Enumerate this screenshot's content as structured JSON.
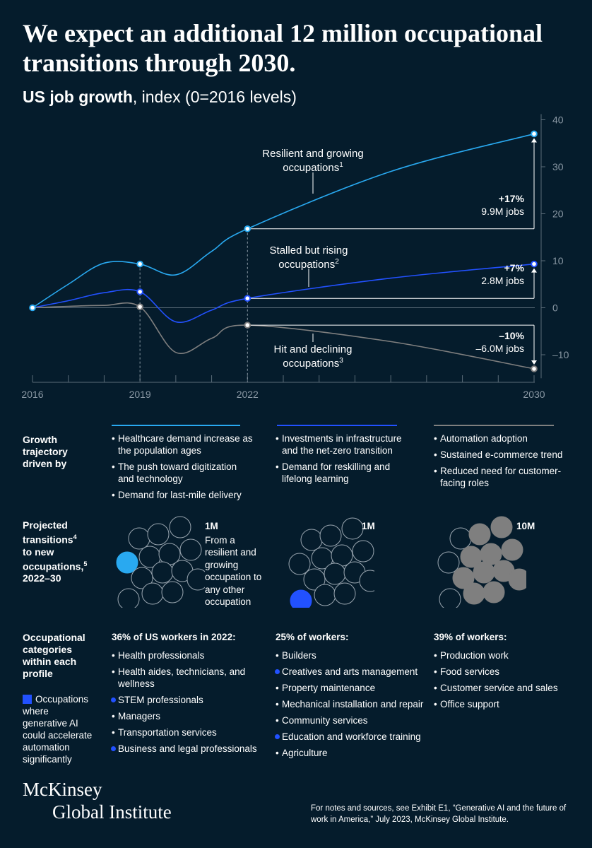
{
  "headline": "We expect an additional 12 million occupational transitions through 2030.",
  "subtitle_bold": "US job growth",
  "subtitle_rest": ", index (0=2016 levels)",
  "colors": {
    "background": "#051c2c",
    "resilient": "#29a9f0",
    "stalled": "#2251ff",
    "declining": "#7f7f7f",
    "axis": "#5a6b78"
  },
  "chart_data": {
    "type": "line",
    "x_ticks": [
      2016,
      2019,
      2022,
      2030
    ],
    "y_ticks": [
      40,
      30,
      20,
      10,
      0,
      -10
    ],
    "ylim": [
      -15,
      40
    ],
    "title": "US job growth",
    "ylabel": "index (0=2016 levels)",
    "grid": false,
    "series": [
      {
        "name": "Resilient and growing occupations¹",
        "color": "#29a9f0",
        "points": [
          [
            2016,
            0
          ],
          [
            2017,
            5
          ],
          [
            2018,
            9.5
          ],
          [
            2019,
            9.3
          ],
          [
            2020,
            7
          ],
          [
            2021,
            12
          ],
          [
            2022,
            16.8
          ],
          [
            2026,
            29
          ],
          [
            2030,
            37
          ]
        ]
      },
      {
        "name": "Stalled but rising occupations²",
        "color": "#2251ff",
        "points": [
          [
            2016,
            0
          ],
          [
            2017,
            1.5
          ],
          [
            2018,
            3.2
          ],
          [
            2019,
            3.4
          ],
          [
            2020,
            -3
          ],
          [
            2021,
            -0.5
          ],
          [
            2022,
            2
          ],
          [
            2026,
            6.3
          ],
          [
            2030,
            9.3
          ]
        ]
      },
      {
        "name": "Hit and declining occupations³",
        "color": "#7f7f7f",
        "points": [
          [
            2016,
            0
          ],
          [
            2017,
            0.3
          ],
          [
            2018,
            0.5
          ],
          [
            2019,
            0.2
          ],
          [
            2020,
            -9.5
          ],
          [
            2021,
            -6.5
          ],
          [
            2022,
            -3.7
          ],
          [
            2026,
            -7.2
          ],
          [
            2030,
            -13
          ]
        ]
      }
    ],
    "markers": {
      "resilient": [
        [
          2016,
          0
        ],
        [
          2019,
          9.3
        ],
        [
          2022,
          16.8
        ],
        [
          2030,
          37
        ]
      ],
      "stalled": [
        [
          2019,
          3.4
        ],
        [
          2022,
          2
        ],
        [
          2030,
          9.3
        ]
      ],
      "declining": [
        [
          2019,
          0.2
        ],
        [
          2022,
          -3.7
        ],
        [
          2030,
          -13
        ]
      ]
    },
    "annotations": [
      {
        "line1": "Resilient and growing",
        "line2": "occupations",
        "sup": "1",
        "pct": "+17%",
        "jobs": "9.9M jobs"
      },
      {
        "line1": "Stalled but rising",
        "line2": "occupations",
        "sup": "2",
        "pct": "+7%",
        "jobs": "2.8M jobs"
      },
      {
        "line1": "Hit and declining",
        "line2": "occupations",
        "sup": "3",
        "pct": "–10%",
        "jobs": "–6.0M jobs"
      }
    ]
  },
  "rows": {
    "growth_label": "Growth trajectory driven by",
    "transitions_label_1": "Projected",
    "transitions_label_2": "transitions",
    "transitions_sup_1": "4",
    "transitions_label_3": "to new",
    "transitions_label_4": "occupations,",
    "transitions_sup_2": "5",
    "transitions_label_5": "2022–30",
    "categories_label": "Occupational categories within each profile",
    "legend_text": "Occupations where generative AI could accelerate automation significantly"
  },
  "drivers": [
    [
      "Healthcare demand increase as the population ages",
      "The push toward digitization and technology",
      "Demand for last-mile delivery"
    ],
    [
      "Investments in infrastructure and the net-zero transition",
      "Demand for reskilling and lifelong learning"
    ],
    [
      "Automation adoption",
      "Sustained e-commerce trend",
      "Reduced need for customer-facing roles"
    ]
  ],
  "transitions": [
    {
      "value": "1M",
      "note": "From a resilient and growing occupation to any other occupation"
    },
    {
      "value": "1M"
    },
    {
      "value": "10M"
    }
  ],
  "categories": [
    {
      "head": "36% of US workers in 2022:",
      "items": [
        {
          "label": "Health professionals",
          "gen_ai": false
        },
        {
          "label": "Health aides, technicians, and wellness",
          "gen_ai": false
        },
        {
          "label": "STEM professionals",
          "gen_ai": true
        },
        {
          "label": "Managers",
          "gen_ai": false
        },
        {
          "label": "Transportation services",
          "gen_ai": false
        },
        {
          "label": "Business and legal professionals",
          "gen_ai": true
        }
      ]
    },
    {
      "head": "25% of workers:",
      "items": [
        {
          "label": "Builders",
          "gen_ai": false
        },
        {
          "label": "Creatives and arts management",
          "gen_ai": true
        },
        {
          "label": "Property maintenance",
          "gen_ai": false
        },
        {
          "label": "Mechanical installation and repair",
          "gen_ai": false
        },
        {
          "label": "Community services",
          "gen_ai": false
        },
        {
          "label": "Education and workforce training",
          "gen_ai": true
        },
        {
          "label": "Agriculture",
          "gen_ai": false
        }
      ]
    },
    {
      "head": "39% of workers:",
      "items": [
        {
          "label": "Production work",
          "gen_ai": false
        },
        {
          "label": "Food services",
          "gen_ai": false
        },
        {
          "label": "Customer service and sales",
          "gen_ai": false
        },
        {
          "label": "Office support",
          "gen_ai": false
        }
      ]
    }
  ],
  "logo": {
    "line1": "McKinsey",
    "line2": "Global Institute"
  },
  "source": "For notes and sources, see Exhibit E1, “Generative AI and the future of work in America,” July 2023, McKinsey Global Institute."
}
